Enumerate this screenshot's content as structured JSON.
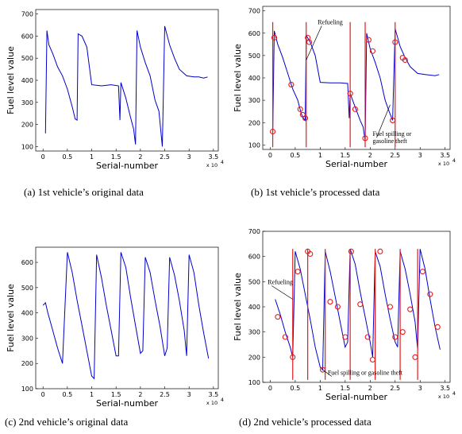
{
  "colors": {
    "line": "#0000cc",
    "marker": "#e41a1c",
    "axis": "#000000"
  },
  "captions": [
    "(a) 1st vehicle’s original data",
    "(b) 1st vehicle’s processed data",
    "(c) 2nd vehicle’s original data",
    "(d) 2nd vehicle’s processed data"
  ],
  "chart_data": [
    {
      "type": "line",
      "xlabel": "Serial-number",
      "ylabel": "Fuel level value",
      "x_multiplier": "x 10",
      "x_multiplier_exp": "4",
      "xlim": [
        -0.15,
        3.6
      ],
      "ylim": [
        80,
        720
      ],
      "xticks": [
        0,
        0.5,
        1,
        1.5,
        2,
        2.5,
        3,
        3.5
      ],
      "xtick_labels": [
        "0",
        "0.5",
        "1",
        "1.5",
        "2",
        "2.5",
        "3",
        "3.5"
      ],
      "yticks": [
        100,
        200,
        300,
        400,
        500,
        600,
        700
      ],
      "ytick_labels": [
        "100",
        "200",
        "300",
        "400",
        "500",
        "600",
        "700"
      ],
      "series": [
        {
          "x": [
            0.05,
            0.08,
            0.12,
            0.2,
            0.3,
            0.4,
            0.5,
            0.6,
            0.66,
            0.7,
            0.72,
            0.8,
            0.9,
            1.0,
            1.2,
            1.4,
            1.55,
            1.58,
            1.6,
            1.7,
            1.8,
            1.86,
            1.9,
            1.93,
            2.0,
            2.1,
            2.2,
            2.3,
            2.38,
            2.45,
            2.5,
            2.6,
            2.7,
            2.8,
            2.95,
            3.1,
            3.2,
            3.3,
            3.38
          ],
          "y": [
            160,
            625,
            560,
            520,
            460,
            420,
            360,
            280,
            225,
            220,
            610,
            600,
            550,
            380,
            375,
            380,
            375,
            220,
            390,
            320,
            230,
            180,
            110,
            625,
            550,
            480,
            420,
            310,
            260,
            100,
            645,
            560,
            500,
            450,
            420,
            415,
            415,
            410,
            415
          ]
        }
      ]
    },
    {
      "type": "line",
      "xlabel": "Serial-number",
      "ylabel": "Fuel level value",
      "x_multiplier": "x 10",
      "x_multiplier_exp": "4",
      "xlim": [
        -0.15,
        3.6
      ],
      "ylim": [
        80,
        720
      ],
      "xticks": [
        0,
        0.5,
        1,
        1.5,
        2,
        2.5,
        3,
        3.5
      ],
      "xtick_labels": [
        "0",
        "0.5",
        "1",
        "1.5",
        "2",
        "2.5",
        "3",
        "3.5"
      ],
      "yticks": [
        100,
        200,
        300,
        400,
        500,
        600,
        700
      ],
      "ytick_labels": [
        "100",
        "200",
        "300",
        "400",
        "500",
        "600",
        "700"
      ],
      "annotations": [
        {
          "text": "Refueling",
          "x": 0.95,
          "y": 640,
          "target_x": 0.72,
          "target_y": 480
        },
        {
          "text": "Fuel spilling or",
          "x": 2.05,
          "y": 140,
          "target_x": 2.4,
          "target_y": 280
        },
        {
          "text": "gasoline theft",
          "x": 2.05,
          "y": 108,
          "target_x": null,
          "target_y": null
        }
      ],
      "series": [
        {
          "x": [
            0.05,
            0.08,
            0.15,
            0.25,
            0.35,
            0.45,
            0.55,
            0.62,
            0.66,
            0.7,
            0.72,
            0.8,
            0.9,
            1.0,
            1.2,
            1.4,
            1.55,
            1.58,
            1.6,
            1.7,
            1.8,
            1.86,
            1.9,
            1.93,
            2.0,
            2.1,
            2.2,
            2.3,
            2.38,
            2.45,
            2.5,
            2.6,
            2.7,
            2.8,
            2.95,
            3.1,
            3.3,
            3.38
          ],
          "y": [
            160,
            610,
            550,
            490,
            420,
            350,
            300,
            240,
            220,
            210,
            590,
            560,
            500,
            380,
            378,
            378,
            375,
            220,
            330,
            270,
            210,
            180,
            120,
            600,
            530,
            470,
            400,
            300,
            250,
            210,
            620,
            540,
            490,
            450,
            420,
            415,
            410,
            415
          ]
        },
        {
          "name_hidden": "markers",
          "x": [
            0.05,
            0.08,
            0.42,
            0.6,
            0.65,
            0.7,
            0.75,
            0.78,
            1.6,
            1.7,
            1.9,
            1.97,
            2.05,
            2.45,
            2.5,
            2.65,
            2.7
          ],
          "y": [
            160,
            580,
            370,
            260,
            235,
            220,
            580,
            560,
            330,
            260,
            130,
            570,
            520,
            210,
            560,
            490,
            480
          ]
        },
        {
          "vertical_lines_x": [
            0.05,
            0.72,
            1.6,
            1.9,
            2.5
          ]
        }
      ]
    },
    {
      "type": "line",
      "xlabel": "Serial-number",
      "ylabel": "Fuel level value",
      "x_multiplier": "x 10",
      "x_multiplier_exp": "4",
      "xlim": [
        -0.15,
        3.6
      ],
      "ylim": [
        100,
        660
      ],
      "xticks": [
        0,
        0.5,
        1,
        1.5,
        2,
        2.5,
        3,
        3.5
      ],
      "xtick_labels": [
        "0",
        "0.5",
        "1",
        "1.5",
        "2",
        "2.5",
        "3",
        "3.5"
      ],
      "yticks": [
        100,
        200,
        300,
        400,
        500,
        600
      ],
      "ytick_labels": [
        "100",
        "200",
        "300",
        "400",
        "500",
        "600"
      ],
      "series": [
        {
          "x": [
            0.0,
            0.05,
            0.1,
            0.2,
            0.3,
            0.4,
            0.45,
            0.5,
            0.6,
            0.7,
            0.8,
            0.9,
            1.0,
            1.05,
            1.1,
            1.2,
            1.3,
            1.4,
            1.5,
            1.55,
            1.6,
            1.7,
            1.8,
            1.9,
            2.0,
            2.05,
            2.1,
            2.2,
            2.3,
            2.4,
            2.5,
            2.55,
            2.6,
            2.7,
            2.8,
            2.9,
            2.95,
            3.0,
            3.1,
            3.2,
            3.3,
            3.4
          ],
          "y": [
            430,
            440,
            400,
            330,
            260,
            200,
            420,
            640,
            560,
            450,
            350,
            250,
            150,
            140,
            630,
            540,
            430,
            330,
            230,
            230,
            640,
            580,
            460,
            350,
            240,
            250,
            620,
            560,
            450,
            350,
            230,
            260,
            620,
            550,
            450,
            330,
            230,
            630,
            560,
            430,
            320,
            220
          ]
        }
      ]
    },
    {
      "type": "line",
      "xlabel": "Serial-number",
      "ylabel": "Fuel level value",
      "x_multiplier": "x 10",
      "x_multiplier_exp": "4",
      "xlim": [
        -0.15,
        3.6
      ],
      "ylim": [
        100,
        700
      ],
      "xticks": [
        0,
        0.5,
        1,
        1.5,
        2,
        2.5,
        3,
        3.5
      ],
      "xtick_labels": [
        "0",
        "0.5",
        "1",
        "1.5",
        "2",
        "2.5",
        "3",
        "3.5"
      ],
      "yticks": [
        100,
        200,
        300,
        400,
        500,
        600,
        700
      ],
      "ytick_labels": [
        "100",
        "200",
        "300",
        "400",
        "500",
        "600",
        "700"
      ],
      "annotations": [
        {
          "text": "Refueling",
          "x": -0.05,
          "y": 490,
          "target_x": 0.45,
          "target_y": 430
        },
        {
          "text": "Fuel spilling or gasoline theft",
          "x": 1.15,
          "y": 130,
          "target_x": 1.05,
          "target_y": 150
        }
      ],
      "series": [
        {
          "x": [
            0.1,
            0.2,
            0.3,
            0.4,
            0.45,
            0.5,
            0.6,
            0.7,
            0.8,
            0.9,
            1.0,
            1.05,
            1.1,
            1.2,
            1.3,
            1.4,
            1.5,
            1.55,
            1.6,
            1.7,
            1.8,
            1.9,
            2.0,
            2.05,
            2.1,
            2.2,
            2.3,
            2.4,
            2.5,
            2.55,
            2.6,
            2.7,
            2.8,
            2.9,
            2.95,
            3.0,
            3.1,
            3.2,
            3.3,
            3.4
          ],
          "y": [
            430,
            370,
            300,
            240,
            200,
            620,
            550,
            450,
            350,
            240,
            160,
            150,
            620,
            540,
            440,
            340,
            240,
            260,
            630,
            570,
            460,
            360,
            260,
            200,
            620,
            560,
            450,
            350,
            260,
            240,
            620,
            550,
            450,
            340,
            230,
            630,
            550,
            430,
            320,
            230
          ]
        },
        {
          "name_hidden": "markers",
          "x": [
            0.15,
            0.3,
            0.45,
            0.55,
            0.75,
            0.8,
            1.05,
            1.2,
            1.35,
            1.5,
            1.62,
            1.8,
            1.95,
            2.05,
            2.2,
            2.4,
            2.5,
            2.65,
            2.8,
            2.9,
            3.05,
            3.2,
            3.35
          ],
          "y": [
            360,
            280,
            200,
            540,
            620,
            610,
            150,
            420,
            400,
            280,
            620,
            410,
            280,
            190,
            620,
            400,
            280,
            300,
            390,
            200,
            540,
            450,
            320
          ]
        },
        {
          "vertical_lines_x": [
            0.45,
            0.75,
            1.1,
            1.6,
            2.1,
            2.6,
            2.95
          ]
        }
      ]
    }
  ]
}
